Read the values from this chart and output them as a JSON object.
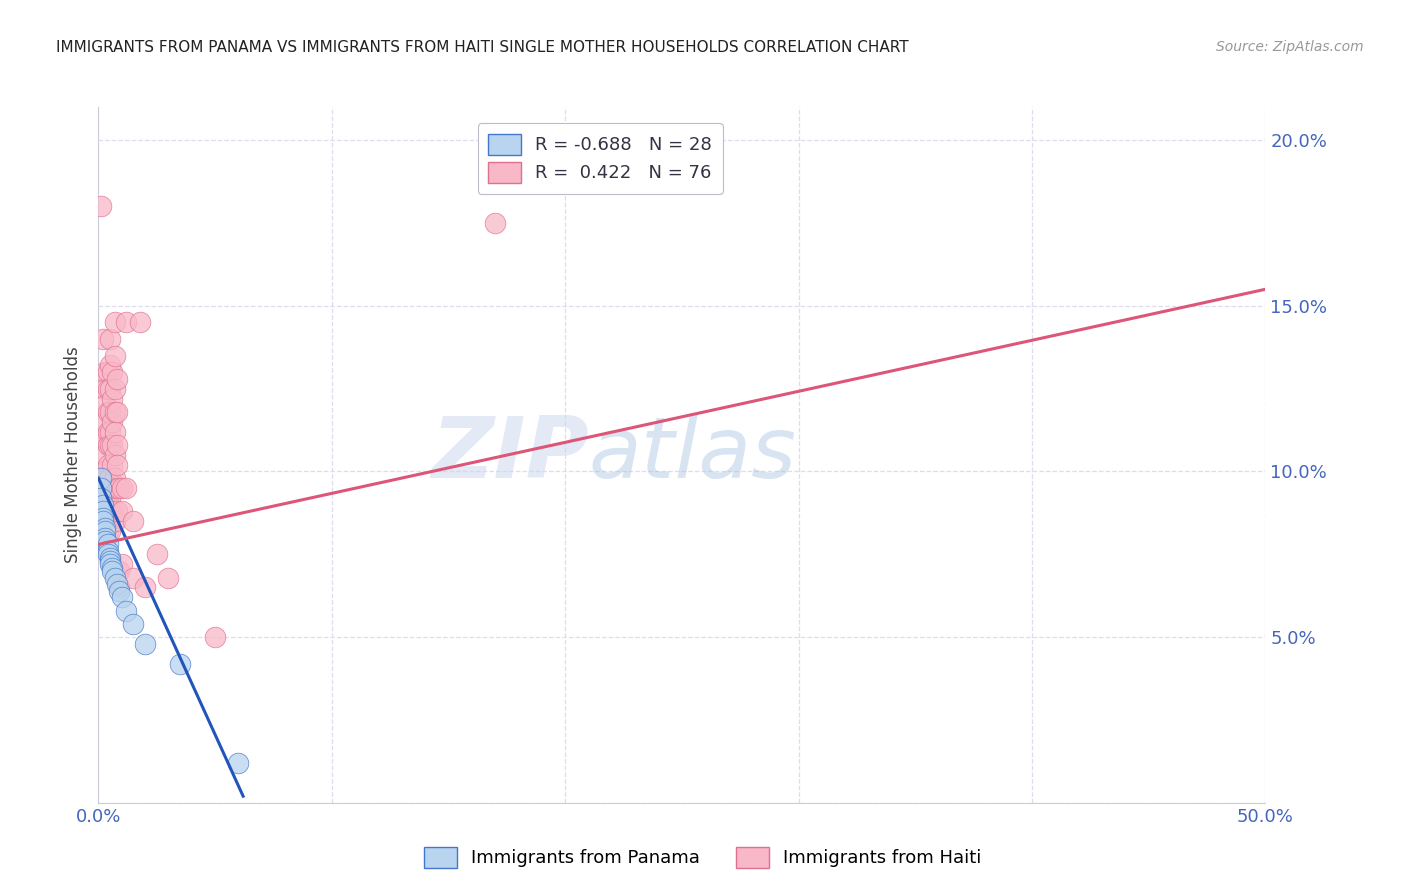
{
  "title": "IMMIGRANTS FROM PANAMA VS IMMIGRANTS FROM HAITI SINGLE MOTHER HOUSEHOLDS CORRELATION CHART",
  "source": "Source: ZipAtlas.com",
  "ylabel": "Single Mother Households",
  "xlim": [
    0.0,
    0.5
  ],
  "ylim": [
    0.0,
    0.21
  ],
  "xtick_positions": [
    0.0,
    0.1,
    0.2,
    0.3,
    0.4,
    0.5
  ],
  "xticklabels": [
    "0.0%",
    "",
    "",
    "",
    "",
    "50.0%"
  ],
  "ytick_positions": [
    0.0,
    0.05,
    0.1,
    0.15,
    0.2
  ],
  "yticklabels": [
    "",
    "5.0%",
    "10.0%",
    "15.0%",
    "20.0%"
  ],
  "panama_fill_color": "#b8d4ee",
  "panama_edge_color": "#4477cc",
  "haiti_fill_color": "#f8b8c8",
  "haiti_edge_color": "#e07090",
  "panama_line_color": "#2255bb",
  "haiti_line_color": "#dd5577",
  "legend_panama_R": "-0.688",
  "legend_panama_N": "28",
  "legend_haiti_R": "0.422",
  "legend_haiti_N": "76",
  "watermark_zip": "ZIP",
  "watermark_atlas": "atlas",
  "background_color": "#ffffff",
  "grid_color": "#ddddee",
  "tick_label_color": "#4466bb",
  "ylabel_color": "#444444",
  "title_color": "#222222",
  "source_color": "#999999",
  "panama_scatter": [
    [
      0.001,
      0.098
    ],
    [
      0.001,
      0.095
    ],
    [
      0.001,
      0.092
    ],
    [
      0.002,
      0.09
    ],
    [
      0.002,
      0.088
    ],
    [
      0.002,
      0.086
    ],
    [
      0.002,
      0.085
    ],
    [
      0.003,
      0.083
    ],
    [
      0.003,
      0.082
    ],
    [
      0.003,
      0.08
    ],
    [
      0.003,
      0.079
    ],
    [
      0.004,
      0.078
    ],
    [
      0.004,
      0.076
    ],
    [
      0.004,
      0.075
    ],
    [
      0.005,
      0.074
    ],
    [
      0.005,
      0.073
    ],
    [
      0.005,
      0.072
    ],
    [
      0.006,
      0.071
    ],
    [
      0.006,
      0.07
    ],
    [
      0.007,
      0.068
    ],
    [
      0.008,
      0.066
    ],
    [
      0.009,
      0.064
    ],
    [
      0.01,
      0.062
    ],
    [
      0.012,
      0.058
    ],
    [
      0.015,
      0.054
    ],
    [
      0.02,
      0.048
    ],
    [
      0.035,
      0.042
    ],
    [
      0.06,
      0.012
    ]
  ],
  "haiti_scatter": [
    [
      0.001,
      0.18
    ],
    [
      0.001,
      0.095
    ],
    [
      0.001,
      0.09
    ],
    [
      0.002,
      0.14
    ],
    [
      0.002,
      0.11
    ],
    [
      0.002,
      0.1
    ],
    [
      0.002,
      0.095
    ],
    [
      0.002,
      0.088
    ],
    [
      0.002,
      0.085
    ],
    [
      0.003,
      0.13
    ],
    [
      0.003,
      0.125
    ],
    [
      0.003,
      0.12
    ],
    [
      0.003,
      0.115
    ],
    [
      0.003,
      0.11
    ],
    [
      0.003,
      0.105
    ],
    [
      0.003,
      0.1
    ],
    [
      0.003,
      0.098
    ],
    [
      0.003,
      0.092
    ],
    [
      0.003,
      0.088
    ],
    [
      0.004,
      0.13
    ],
    [
      0.004,
      0.125
    ],
    [
      0.004,
      0.118
    ],
    [
      0.004,
      0.112
    ],
    [
      0.004,
      0.108
    ],
    [
      0.004,
      0.102
    ],
    [
      0.004,
      0.098
    ],
    [
      0.004,
      0.092
    ],
    [
      0.004,
      0.088
    ],
    [
      0.004,
      0.082
    ],
    [
      0.005,
      0.14
    ],
    [
      0.005,
      0.132
    ],
    [
      0.005,
      0.125
    ],
    [
      0.005,
      0.118
    ],
    [
      0.005,
      0.112
    ],
    [
      0.005,
      0.108
    ],
    [
      0.005,
      0.098
    ],
    [
      0.005,
      0.092
    ],
    [
      0.005,
      0.088
    ],
    [
      0.005,
      0.082
    ],
    [
      0.006,
      0.13
    ],
    [
      0.006,
      0.122
    ],
    [
      0.006,
      0.115
    ],
    [
      0.006,
      0.108
    ],
    [
      0.006,
      0.102
    ],
    [
      0.006,
      0.095
    ],
    [
      0.006,
      0.088
    ],
    [
      0.007,
      0.145
    ],
    [
      0.007,
      0.135
    ],
    [
      0.007,
      0.125
    ],
    [
      0.007,
      0.118
    ],
    [
      0.007,
      0.112
    ],
    [
      0.007,
      0.105
    ],
    [
      0.007,
      0.098
    ],
    [
      0.007,
      0.085
    ],
    [
      0.008,
      0.128
    ],
    [
      0.008,
      0.118
    ],
    [
      0.008,
      0.108
    ],
    [
      0.008,
      0.102
    ],
    [
      0.008,
      0.095
    ],
    [
      0.008,
      0.088
    ],
    [
      0.009,
      0.095
    ],
    [
      0.009,
      0.07
    ],
    [
      0.009,
      0.065
    ],
    [
      0.01,
      0.095
    ],
    [
      0.01,
      0.088
    ],
    [
      0.01,
      0.072
    ],
    [
      0.012,
      0.145
    ],
    [
      0.012,
      0.095
    ],
    [
      0.015,
      0.085
    ],
    [
      0.015,
      0.068
    ],
    [
      0.018,
      0.145
    ],
    [
      0.02,
      0.065
    ],
    [
      0.025,
      0.075
    ],
    [
      0.03,
      0.068
    ],
    [
      0.05,
      0.05
    ],
    [
      0.17,
      0.175
    ]
  ],
  "panama_line_x": [
    0.0,
    0.062
  ],
  "panama_line_y": [
    0.098,
    0.002
  ],
  "haiti_line_x": [
    0.0,
    0.5
  ],
  "haiti_line_y": [
    0.078,
    0.155
  ]
}
